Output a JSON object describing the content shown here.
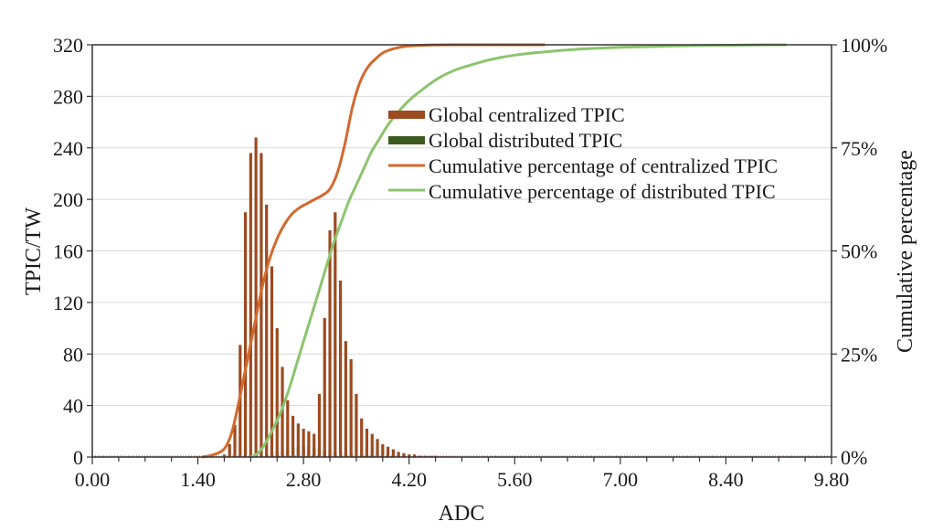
{
  "chart_data": {
    "type": "bar",
    "xlabel": "ADC",
    "ylabel": "TPIC/TW",
    "y2label": "Cumulative percentage",
    "xlim": [
      0,
      9.8
    ],
    "ylim": [
      0,
      320
    ],
    "y2lim": [
      0,
      100
    ],
    "x_ticks": [
      "0.00",
      "1.40",
      "2.80",
      "4.20",
      "5.60",
      "7.00",
      "8.40",
      "9.80"
    ],
    "y_ticks": [
      "0",
      "40",
      "80",
      "120",
      "160",
      "200",
      "240",
      "280",
      "320"
    ],
    "y2_ticks": [
      "0%",
      "25%",
      "50%",
      "75%",
      "100%"
    ],
    "grid": "horizontal",
    "legend_position": "upper-right",
    "bin_width": 0.07,
    "series": [
      {
        "name": "Global centralized TPIC",
        "kind": "bar",
        "color": "#9c4a1f",
        "x": [
          1.75,
          1.82,
          1.89,
          1.96,
          2.03,
          2.1,
          2.17,
          2.24,
          2.31,
          2.38,
          2.45,
          2.52,
          2.59,
          2.66,
          2.73,
          2.8,
          2.87,
          2.94,
          3.01,
          3.08,
          3.15,
          3.22,
          3.29,
          3.36,
          3.43,
          3.5,
          3.57,
          3.64,
          3.71,
          3.78,
          3.85,
          3.92,
          3.99,
          4.06,
          4.13,
          4.2,
          4.27,
          4.34,
          4.41,
          4.48,
          4.55,
          4.62,
          4.69,
          4.76
        ],
        "values": [
          2,
          10,
          25,
          87,
          190,
          236,
          248,
          236,
          196,
          148,
          100,
          70,
          44,
          32,
          26,
          22,
          20,
          18,
          49,
          108,
          176,
          190,
          137,
          90,
          76,
          49,
          30,
          22,
          18,
          14,
          10,
          8,
          6,
          4,
          3,
          2,
          2,
          1,
          1,
          1,
          1,
          0.5,
          0.5,
          0.5
        ]
      },
      {
        "name": "Global distributed TPIC",
        "kind": "bar",
        "color": "#3d5a1e",
        "x": [
          2.24,
          2.31,
          2.38,
          2.45,
          2.52,
          2.59,
          2.66,
          2.73,
          2.8,
          2.87,
          2.94,
          3.01,
          3.08,
          3.15,
          3.22,
          3.29,
          3.36,
          3.43,
          3.5,
          3.57,
          3.64,
          3.71,
          3.78,
          3.85,
          3.92,
          3.99,
          4.06,
          4.13
        ],
        "values": [
          1,
          2,
          3,
          4,
          5,
          6,
          7,
          8,
          8,
          8,
          7,
          6,
          5,
          5,
          4,
          4,
          3,
          3,
          2,
          2,
          2,
          2,
          1,
          1,
          1,
          1,
          1,
          1
        ]
      },
      {
        "name": "Cumulative percentage of centralized TPIC",
        "kind": "line",
        "axis": "right",
        "color": "#d2692e",
        "x": [
          1.45,
          1.6,
          1.75,
          1.85,
          1.95,
          2.05,
          2.15,
          2.25,
          2.35,
          2.45,
          2.55,
          2.65,
          2.75,
          2.85,
          2.95,
          3.05,
          3.15,
          3.25,
          3.35,
          3.45,
          3.55,
          3.65,
          3.75,
          3.85,
          3.95,
          4.05,
          4.15,
          4.3,
          4.5,
          4.8,
          5.6,
          6.0
        ],
        "values": [
          0,
          0.5,
          2,
          6,
          14,
          23,
          32,
          41,
          48,
          53,
          56.5,
          59,
          60.5,
          61.5,
          62.5,
          63.5,
          65,
          69,
          76,
          85,
          91,
          94.5,
          96.5,
          98,
          98.8,
          99.3,
          99.6,
          99.85,
          99.95,
          100,
          100,
          100
        ]
      },
      {
        "name": "Cumulative percentage of distributed TPIC",
        "kind": "line",
        "axis": "right",
        "color": "#8cc46e",
        "x": [
          2.1,
          2.2,
          2.3,
          2.4,
          2.5,
          2.6,
          2.7,
          2.8,
          2.9,
          3.0,
          3.1,
          3.2,
          3.3,
          3.4,
          3.5,
          3.6,
          3.7,
          3.8,
          3.9,
          4.0,
          4.2,
          4.4,
          4.6,
          4.8,
          5.0,
          5.3,
          5.6,
          6.0,
          6.5,
          7.0,
          7.5,
          8.0,
          8.5,
          9.0,
          9.2
        ],
        "values": [
          0,
          1,
          3.5,
          7,
          11,
          16,
          22,
          28,
          34,
          40,
          46,
          52,
          57,
          62,
          66,
          70,
          74,
          77,
          80,
          82.5,
          86.5,
          89.5,
          92,
          93.8,
          95,
          96.5,
          97.5,
          98.3,
          99,
          99.4,
          99.6,
          99.8,
          99.9,
          100,
          100
        ]
      }
    ]
  }
}
